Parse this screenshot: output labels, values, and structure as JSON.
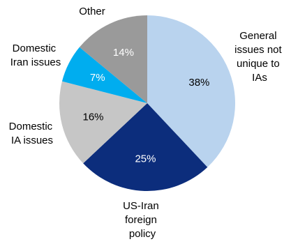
{
  "chart_data": {
    "type": "pie",
    "title": "",
    "slices": [
      {
        "label": "General issues not unique to IAs",
        "value": 38,
        "value_label": "38%",
        "color": "#b9d3ee",
        "label_color": "#000000"
      },
      {
        "label": "US-Iran foreign policy",
        "value": 25,
        "value_label": "25%",
        "color": "#0c2d7c",
        "label_color": "#ffffff"
      },
      {
        "label": "Domestic IA issues",
        "value": 16,
        "value_label": "16%",
        "color": "#c6c6c6",
        "label_color": "#000000"
      },
      {
        "label": "Domestic Iran issues",
        "value": 7,
        "value_label": "7%",
        "color": "#00adef",
        "label_color": "#ffffff"
      },
      {
        "label": "Other",
        "value": 14,
        "value_label": "14%",
        "color": "#9a9a9a",
        "label_color": "#ffffff"
      }
    ],
    "start_angle_deg": 0,
    "direction": "clockwise",
    "legend": "none (labels outside slices)"
  },
  "labels": {
    "general": [
      "General",
      "issues not",
      "unique to",
      "IAs"
    ],
    "usiran": [
      "US-Iran",
      "foreign",
      "policy"
    ],
    "domestic_ia": [
      "Domestic",
      "IA issues"
    ],
    "domestic_iran": [
      "Domestic",
      "Iran issues"
    ],
    "other": [
      "Other"
    ]
  }
}
